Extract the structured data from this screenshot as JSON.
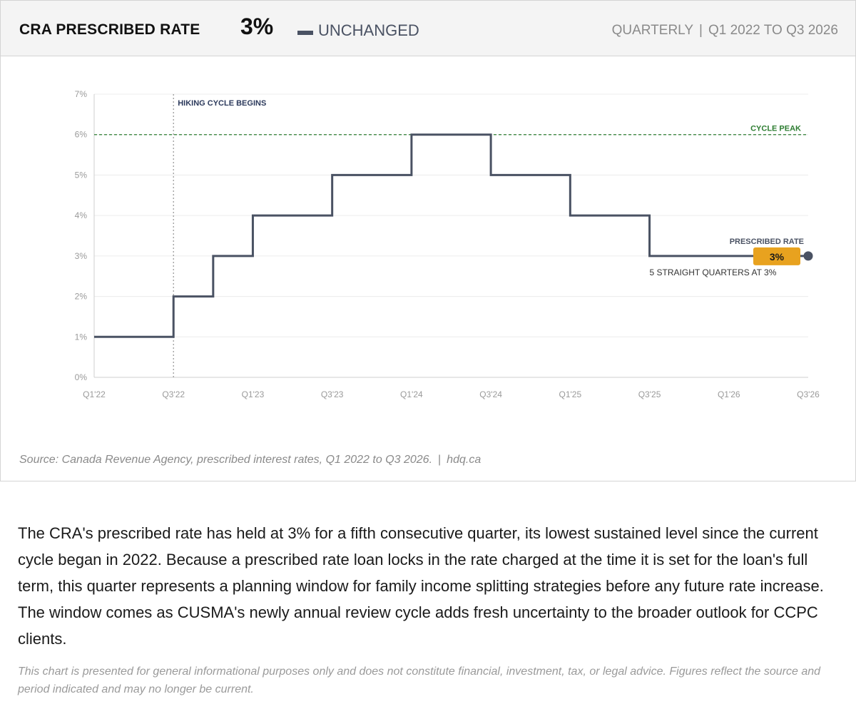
{
  "header": {
    "title": "CRA PRESCRIBED RATE",
    "value": "3%",
    "status": "UNCHANGED",
    "frequency": "QUARTERLY",
    "separator": "|",
    "period": "Q1 2022 TO Q3 2026"
  },
  "source": {
    "text": "Source: Canada Revenue Agency, prescribed interest rates, Q1 2022 to Q3 2026.",
    "separator": "|",
    "site": "hdq.ca"
  },
  "commentary": "The CRA's prescribed rate has held at 3% for a fifth consecutive quarter, its lowest sustained level since the current cycle began in 2022. Because a prescribed rate loan locks in the rate charged at the time it is set for the loan's full term, this quarter represents a planning window for family income splitting strategies before any future rate increase. The window comes as CUSMA's newly annual review cycle adds fresh uncertainty to the broader outlook for CCPC clients.",
  "disclaimer": "This chart is presented for general informational purposes only and does not constitute financial, investment, tax, or legal advice. Figures reflect the source and period indicated and may no longer be current.",
  "chart_data": {
    "type": "line",
    "step": true,
    "x": [
      "Q1'22",
      "Q2'22",
      "Q3'22",
      "Q4'22",
      "Q1'23",
      "Q2'23",
      "Q3'23",
      "Q4'23",
      "Q1'24",
      "Q2'24",
      "Q3'24",
      "Q4'24",
      "Q1'25",
      "Q2'25",
      "Q3'25",
      "Q4'25",
      "Q1'26",
      "Q2'26",
      "Q3'26"
    ],
    "x_tick_labels": [
      "Q1'22",
      "Q3'22",
      "Q1'23",
      "Q3'23",
      "Q1'24",
      "Q3'24",
      "Q1'25",
      "Q3'25",
      "Q1'26",
      "Q3'26"
    ],
    "series": [
      {
        "name": "PRESCRIBED RATE",
        "values": [
          1,
          1,
          2,
          3,
          4,
          4,
          5,
          5,
          6,
          6,
          5,
          5,
          4,
          4,
          3,
          3,
          3,
          3,
          3
        ],
        "color": "#4a5263"
      }
    ],
    "ylim": [
      0,
      7
    ],
    "y_tick_labels": [
      "0%",
      "1%",
      "2%",
      "3%",
      "4%",
      "5%",
      "6%",
      "7%"
    ],
    "grid": true,
    "annotations": {
      "cycle_start": {
        "x": "Q3'22",
        "label": "HIKING CYCLE BEGINS",
        "color": "#2c3a5c"
      },
      "cycle_peak": {
        "y": 6,
        "label": "CYCLE PEAK",
        "color": "#2e7d32"
      },
      "end_label": "PRESCRIBED RATE",
      "end_badge": "3%",
      "end_badge_color": "#e8a21f",
      "end_note": "5 STRAIGHT QUARTERS AT 3%"
    }
  }
}
